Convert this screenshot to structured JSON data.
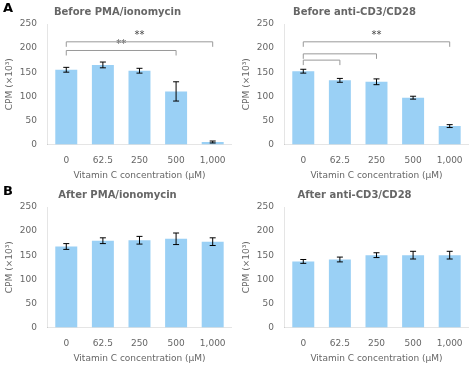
{
  "chart_data": [
    {
      "type": "bar",
      "title": "Before PMA/ionomycin",
      "panel_label": "A",
      "categories": [
        "0",
        "62.5",
        "250",
        "500",
        "1,000"
      ],
      "values": [
        155,
        165,
        153,
        110,
        5
      ],
      "errors": [
        5,
        6,
        5,
        20,
        2
      ],
      "xlabel": "Vitamin C concentration (μM)",
      "ylabel": "CPM (×10³)",
      "ylim": [
        0,
        250
      ],
      "yticks": [
        0,
        50,
        100,
        150,
        200,
        250
      ],
      "grid": false,
      "annotations": [
        {
          "x1": "0",
          "x2": "500",
          "y": 195,
          "label": "**"
        },
        {
          "x1": "0",
          "x2": "1,000",
          "y": 213,
          "label": "**"
        }
      ]
    },
    {
      "type": "bar",
      "title": "Before anti-CD3/CD28",
      "categories": [
        "0",
        "62.5",
        "250",
        "500",
        "1,000"
      ],
      "values": [
        152,
        133,
        130,
        97,
        38
      ],
      "errors": [
        4,
        4,
        6,
        3,
        3
      ],
      "xlabel": "Vitamin C concentration (μM)",
      "ylabel": "CPM (×10³)",
      "ylim": [
        0,
        250
      ],
      "yticks": [
        0,
        50,
        100,
        150,
        200,
        250
      ],
      "grid": false,
      "annotations": [
        {
          "x1": "0",
          "x2": "62.5",
          "y": 175
        },
        {
          "x1": "0",
          "x2": "250",
          "y": 188
        },
        {
          "x1": "0",
          "x2": "1,000",
          "y": 213,
          "label": "**"
        }
      ]
    },
    {
      "type": "bar",
      "title": "After PMA/ionomycin",
      "panel_label": "B",
      "categories": [
        "0",
        "62.5",
        "250",
        "500",
        "1,000"
      ],
      "values": [
        168,
        180,
        181,
        184,
        178
      ],
      "errors": [
        6,
        6,
        8,
        12,
        8
      ],
      "xlabel": "Vitamin C concentration (μM)",
      "ylabel": "CPM (×10³)",
      "ylim": [
        0,
        250
      ],
      "yticks": [
        0,
        50,
        100,
        150,
        200,
        250
      ],
      "grid": false
    },
    {
      "type": "bar",
      "title": "After anti-CD3/CD28",
      "categories": [
        "0",
        "62.5",
        "250",
        "500",
        "1,000"
      ],
      "values": [
        137,
        141,
        150,
        150,
        150
      ],
      "errors": [
        4,
        5,
        5,
        8,
        8
      ],
      "xlabel": "Vitamin C concentration (μM)",
      "ylabel": "CPM (×10³)",
      "ylim": [
        0,
        250
      ],
      "yticks": [
        0,
        50,
        100,
        150,
        200,
        250
      ],
      "grid": false
    }
  ]
}
